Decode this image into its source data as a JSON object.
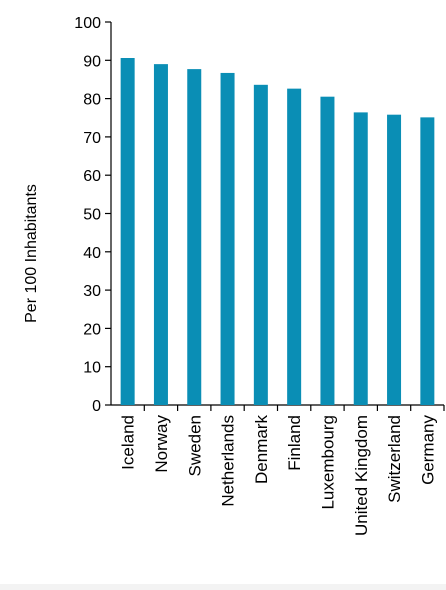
{
  "chart_data": {
    "type": "bar",
    "title": "",
    "xlabel": "",
    "ylabel": "Per 100 Inhabitants",
    "ylim": [
      0,
      100
    ],
    "yticks": [
      0,
      10,
      20,
      30,
      40,
      50,
      60,
      70,
      80,
      90,
      100
    ],
    "grid": false,
    "legend": "none",
    "bar_color": "#0a8eb5",
    "categories": [
      "Iceland",
      "Norway",
      "Sweden",
      "Netherlands",
      "Denmark",
      "Finland",
      "Luxembourg",
      "United Kingdom",
      "Switzerland",
      "Germany"
    ],
    "values": [
      90.6,
      89.0,
      87.7,
      86.7,
      83.6,
      82.6,
      80.5,
      76.4,
      75.8,
      75.1
    ]
  }
}
